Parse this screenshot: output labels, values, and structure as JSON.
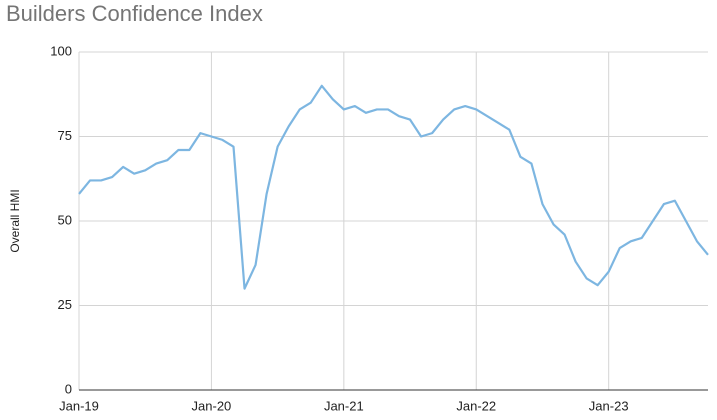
{
  "chart_data": {
    "type": "line",
    "title": "Builders Confidence Index",
    "y_label": "Overall HMI",
    "categories": [
      "Jan-19",
      null,
      null,
      null,
      null,
      null,
      null,
      null,
      null,
      null,
      null,
      null,
      "Jan-20",
      null,
      null,
      null,
      null,
      null,
      null,
      null,
      null,
      null,
      null,
      null,
      "Jan-21",
      null,
      null,
      null,
      null,
      null,
      null,
      null,
      null,
      null,
      null,
      null,
      "Jan-22",
      null,
      null,
      null,
      null,
      null,
      null,
      null,
      null,
      null,
      null,
      null,
      "Jan-23",
      null,
      null,
      null,
      null,
      null,
      null,
      null,
      null,
      null
    ],
    "series": [
      {
        "name": "Overall HMI",
        "color": "#7db6e1",
        "values": [
          58,
          62,
          62,
          63,
          66,
          64,
          65,
          67,
          68,
          71,
          71,
          76,
          75,
          74,
          72,
          30,
          37,
          58,
          72,
          78,
          83,
          85,
          90,
          86,
          83,
          84,
          82,
          83,
          83,
          81,
          80,
          75,
          76,
          80,
          83,
          84,
          83,
          81,
          79,
          77,
          69,
          67,
          55,
          49,
          46,
          38,
          33,
          31,
          35,
          42,
          44,
          45,
          50,
          55,
          56,
          50,
          44,
          40
        ]
      }
    ],
    "ylim": [
      0,
      100
    ],
    "yticks": [
      0,
      25,
      50,
      75,
      100
    ],
    "grid": true
  }
}
